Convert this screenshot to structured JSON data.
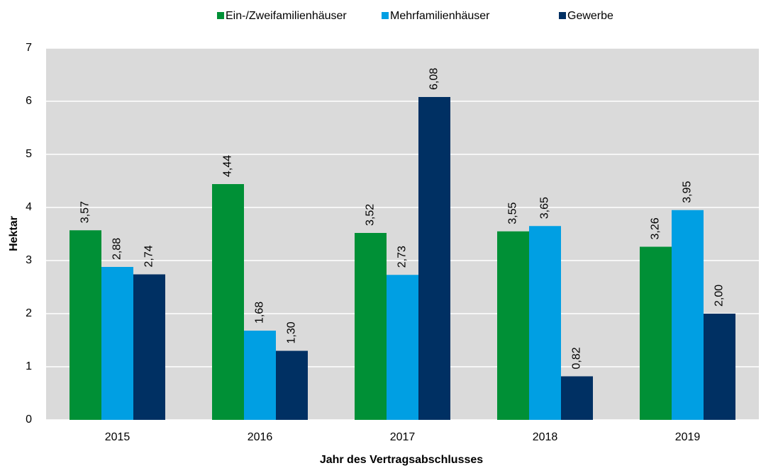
{
  "chart_data": {
    "type": "bar",
    "x_label": "Jahr des Vertragsabschlusses",
    "y_label": "Hektar",
    "categories": [
      "2015",
      "2016",
      "2017",
      "2018",
      "2019"
    ],
    "series": [
      {
        "name": "Ein-/Zweifamilienhäuser",
        "color": "#009036",
        "values": [
          3.57,
          4.44,
          3.52,
          3.55,
          3.26
        ],
        "value_labels": [
          "3,57",
          "4,44",
          "3,52",
          "3,55",
          "3,26"
        ]
      },
      {
        "name": "Mehrfamilienhäuser",
        "color": "#009fe3",
        "values": [
          2.88,
          1.68,
          2.73,
          3.65,
          3.95
        ],
        "value_labels": [
          "2,88",
          "1,68",
          "2,73",
          "3,65",
          "3,95"
        ]
      },
      {
        "name": "Gewerbe",
        "color": "#003063",
        "values": [
          2.74,
          1.3,
          6.08,
          0.82,
          2.0
        ],
        "value_labels": [
          "2,74",
          "1,30",
          "6,08",
          "0,82",
          "2,00"
        ]
      }
    ],
    "ylim": [
      0,
      7
    ],
    "yticks": [
      0,
      1,
      2,
      3,
      4,
      5,
      6,
      7
    ],
    "grid": true
  }
}
